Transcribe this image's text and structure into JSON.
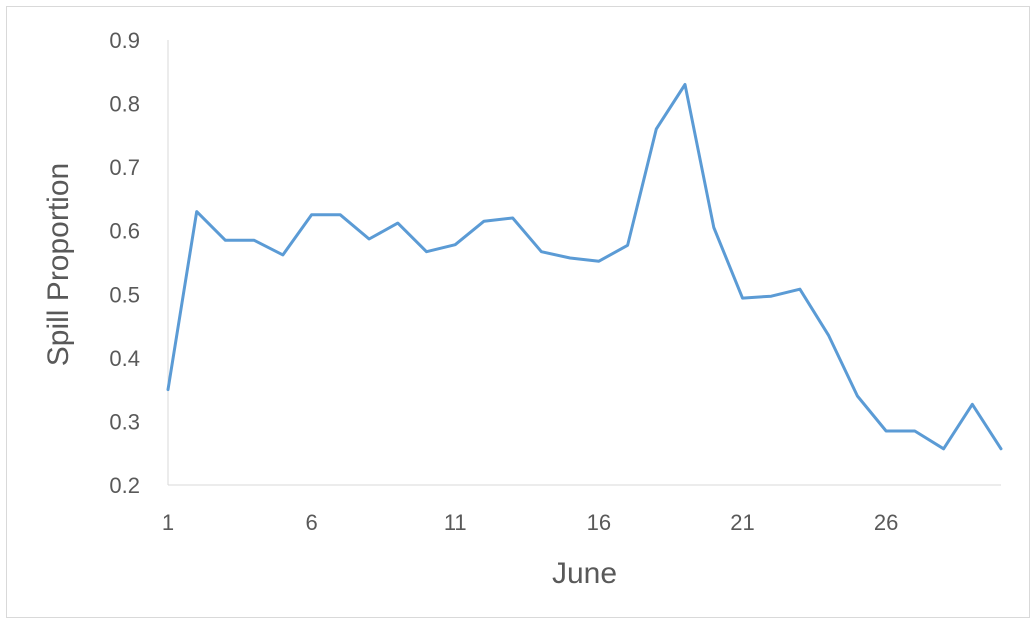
{
  "chart_data": {
    "type": "line",
    "title": "",
    "xlabel": "June",
    "ylabel": "Spill Proportion",
    "xlim": [
      1,
      30
    ],
    "ylim": [
      0.2,
      0.9
    ],
    "x_ticks": [
      "1",
      "6",
      "11",
      "16",
      "21",
      "26"
    ],
    "y_ticks": [
      "0.2",
      "0.3",
      "0.4",
      "0.5",
      "0.6",
      "0.7",
      "0.8",
      "0.9"
    ],
    "grid": false,
    "legend": "none",
    "series": [
      {
        "color": "#5b9bd5",
        "x": [
          1,
          2,
          3,
          4,
          5,
          6,
          7,
          8,
          9,
          10,
          11,
          12,
          13,
          14,
          15,
          16,
          17,
          18,
          19,
          20,
          21,
          22,
          23,
          24,
          25,
          26,
          27,
          28,
          29,
          30
        ],
        "y": [
          0.35,
          0.63,
          0.585,
          0.585,
          0.562,
          0.625,
          0.625,
          0.587,
          0.612,
          0.567,
          0.578,
          0.615,
          0.62,
          0.567,
          0.557,
          0.552,
          0.577,
          0.76,
          0.83,
          0.605,
          0.494,
          0.497,
          0.508,
          0.435,
          0.34,
          0.285,
          0.285,
          0.257,
          0.327,
          0.257
        ]
      }
    ]
  }
}
